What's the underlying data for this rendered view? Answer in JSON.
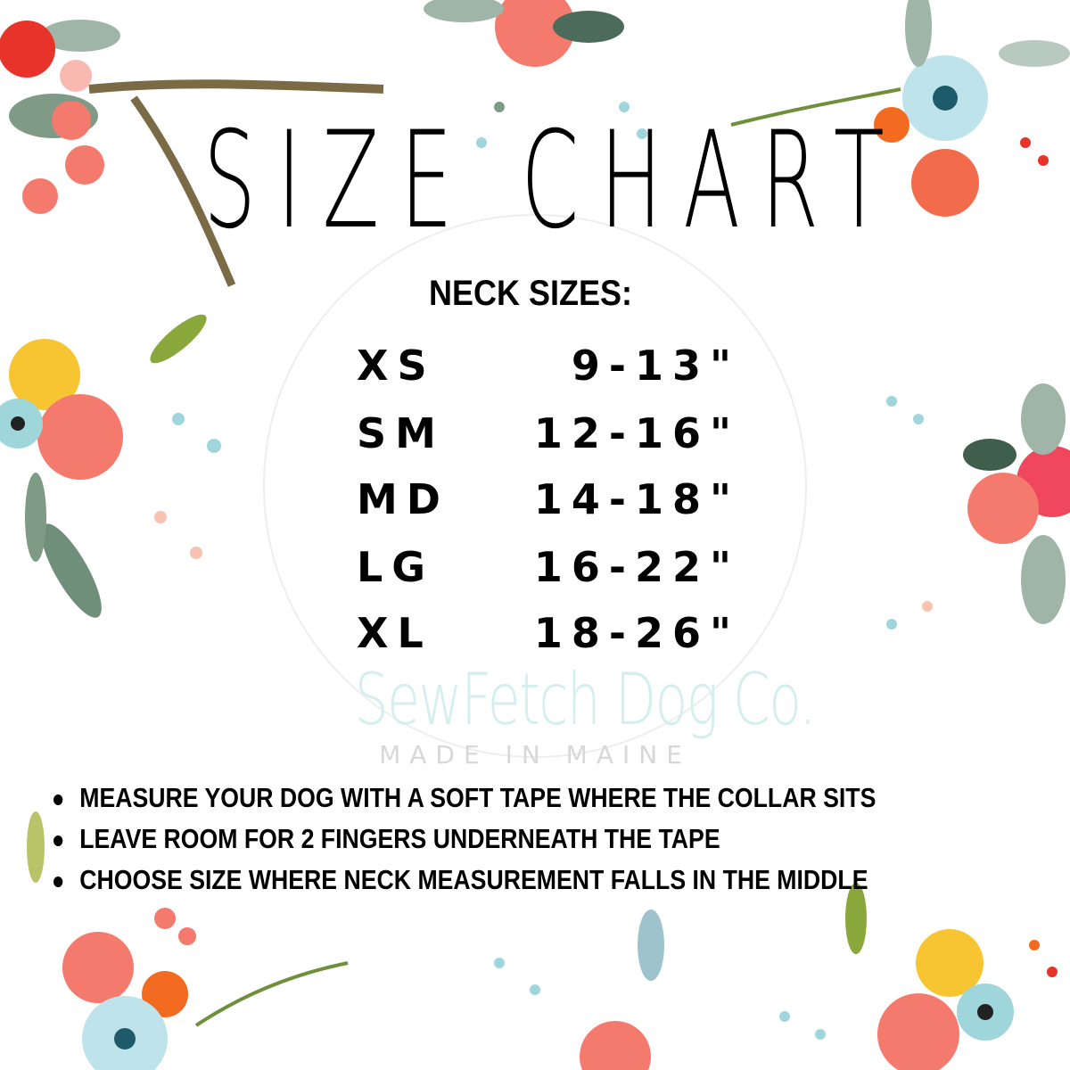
{
  "title": "SIZE CHART",
  "subtitle": "NECK SIZES:",
  "sizes": [
    {
      "size": "XS",
      "range": "9-13\""
    },
    {
      "size": "SM",
      "range": "12-16\""
    },
    {
      "size": "MD",
      "range": "14-18\""
    },
    {
      "size": "LG",
      "range": "16-22\""
    },
    {
      "size": "XL",
      "range": "18-26\""
    }
  ],
  "tips": [
    "MEASURE YOUR DOG WITH A SOFT TAPE WHERE THE COLLAR SITS",
    "LEAVE ROOM FOR 2 FINGERS UNDERNEATH THE TAPE",
    "CHOOSE SIZE WHERE NECK MEASUREMENT FALLS IN THE MIDDLE"
  ],
  "watermark": {
    "name": "SewFetch Dog Co.",
    "tagline": "MADE IN MAINE"
  },
  "colors": {
    "text": "#000000",
    "coral": "#f47a6e",
    "teal": "#9fd6dc",
    "leaf": "#7f9b86",
    "yellow": "#f7c531",
    "orange": "#f26b21"
  }
}
